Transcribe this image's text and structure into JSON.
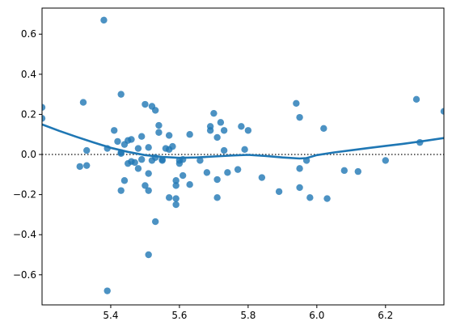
{
  "chart_data": {
    "type": "scatter",
    "title": "",
    "xlabel": "",
    "ylabel": "",
    "xlim": [
      5.2,
      6.37
    ],
    "ylim": [
      -0.75,
      0.73
    ],
    "xticks": [
      5.4,
      5.6,
      5.8,
      6.0,
      6.2
    ],
    "xtick_labels": [
      "5.4",
      "5.6",
      "5.8",
      "6.0",
      "6.2"
    ],
    "yticks": [
      -0.6,
      -0.4,
      -0.2,
      0.0,
      0.2,
      0.4,
      0.6
    ],
    "ytick_labels": [
      "−0.6",
      "−0.4",
      "−0.2",
      "0.0",
      "0.2",
      "0.4",
      "0.6"
    ],
    "grid": false,
    "legend": "none",
    "reference_line": {
      "y": 0,
      "style": "dotted",
      "color": "#333333"
    },
    "point_color": "#1f77b4",
    "points": [
      [
        5.2,
        0.235
      ],
      [
        5.2,
        0.18
      ],
      [
        5.31,
        -0.06
      ],
      [
        5.32,
        0.26
      ],
      [
        5.33,
        0.02
      ],
      [
        5.33,
        -0.055
      ],
      [
        5.38,
        0.67
      ],
      [
        5.39,
        0.03
      ],
      [
        5.39,
        -0.68
      ],
      [
        5.41,
        0.12
      ],
      [
        5.42,
        0.065
      ],
      [
        5.43,
        0.3
      ],
      [
        5.43,
        0.01
      ],
      [
        5.43,
        0.005
      ],
      [
        5.43,
        -0.18
      ],
      [
        5.44,
        0.05
      ],
      [
        5.44,
        -0.13
      ],
      [
        5.45,
        0.07
      ],
      [
        5.45,
        -0.045
      ],
      [
        5.46,
        0.075
      ],
      [
        5.46,
        -0.035
      ],
      [
        5.47,
        -0.04
      ],
      [
        5.48,
        0.03
      ],
      [
        5.48,
        -0.07
      ],
      [
        5.49,
        0.09
      ],
      [
        5.49,
        -0.025
      ],
      [
        5.5,
        0.25
      ],
      [
        5.5,
        -0.155
      ],
      [
        5.51,
        0.035
      ],
      [
        5.51,
        -0.095
      ],
      [
        5.51,
        -0.18
      ],
      [
        5.51,
        -0.5
      ],
      [
        5.52,
        0.24
      ],
      [
        5.52,
        -0.03
      ],
      [
        5.53,
        0.22
      ],
      [
        5.53,
        -0.015
      ],
      [
        5.53,
        -0.335
      ],
      [
        5.54,
        0.145
      ],
      [
        5.54,
        0.11
      ],
      [
        5.55,
        -0.025
      ],
      [
        5.55,
        -0.03
      ],
      [
        5.56,
        0.03
      ],
      [
        5.57,
        0.025
      ],
      [
        5.57,
        0.095
      ],
      [
        5.57,
        -0.215
      ],
      [
        5.58,
        0.04
      ],
      [
        5.59,
        -0.13
      ],
      [
        5.59,
        -0.155
      ],
      [
        5.59,
        -0.22
      ],
      [
        5.59,
        -0.25
      ],
      [
        5.6,
        -0.03
      ],
      [
        5.6,
        -0.045
      ],
      [
        5.61,
        -0.025
      ],
      [
        5.61,
        -0.105
      ],
      [
        5.63,
        0.1
      ],
      [
        5.63,
        -0.15
      ],
      [
        5.66,
        -0.03
      ],
      [
        5.68,
        -0.09
      ],
      [
        5.69,
        0.14
      ],
      [
        5.69,
        0.12
      ],
      [
        5.7,
        0.205
      ],
      [
        5.71,
        0.085
      ],
      [
        5.71,
        -0.125
      ],
      [
        5.71,
        -0.215
      ],
      [
        5.72,
        0.16
      ],
      [
        5.73,
        0.12
      ],
      [
        5.73,
        0.02
      ],
      [
        5.74,
        -0.09
      ],
      [
        5.77,
        -0.075
      ],
      [
        5.78,
        0.14
      ],
      [
        5.79,
        0.025
      ],
      [
        5.8,
        0.12
      ],
      [
        5.84,
        -0.115
      ],
      [
        5.89,
        -0.185
      ],
      [
        5.94,
        0.255
      ],
      [
        5.95,
        -0.165
      ],
      [
        5.95,
        0.185
      ],
      [
        5.95,
        -0.07
      ],
      [
        5.97,
        -0.03
      ],
      [
        5.98,
        -0.215
      ],
      [
        6.02,
        0.13
      ],
      [
        6.03,
        -0.22
      ],
      [
        6.08,
        -0.08
      ],
      [
        6.12,
        -0.085
      ],
      [
        6.2,
        -0.03
      ],
      [
        6.29,
        0.275
      ],
      [
        6.3,
        0.06
      ],
      [
        6.37,
        0.215
      ]
    ],
    "trend_color": "#1f77b4",
    "trend_line": [
      [
        5.2,
        0.15
      ],
      [
        5.25,
        0.118
      ],
      [
        5.3,
        0.088
      ],
      [
        5.35,
        0.06
      ],
      [
        5.4,
        0.033
      ],
      [
        5.45,
        0.013
      ],
      [
        5.5,
        -0.003
      ],
      [
        5.55,
        -0.012
      ],
      [
        5.6,
        -0.017
      ],
      [
        5.65,
        -0.015
      ],
      [
        5.7,
        -0.01
      ],
      [
        5.75,
        -0.005
      ],
      [
        5.8,
        -0.002
      ],
      [
        5.85,
        -0.007
      ],
      [
        5.9,
        -0.015
      ],
      [
        5.95,
        -0.02
      ],
      [
        5.97,
        -0.018
      ],
      [
        6.0,
        -0.003
      ],
      [
        6.05,
        0.01
      ],
      [
        6.1,
        0.021
      ],
      [
        6.15,
        0.032
      ],
      [
        6.2,
        0.043
      ],
      [
        6.25,
        0.053
      ],
      [
        6.3,
        0.064
      ],
      [
        6.37,
        0.082
      ]
    ]
  }
}
